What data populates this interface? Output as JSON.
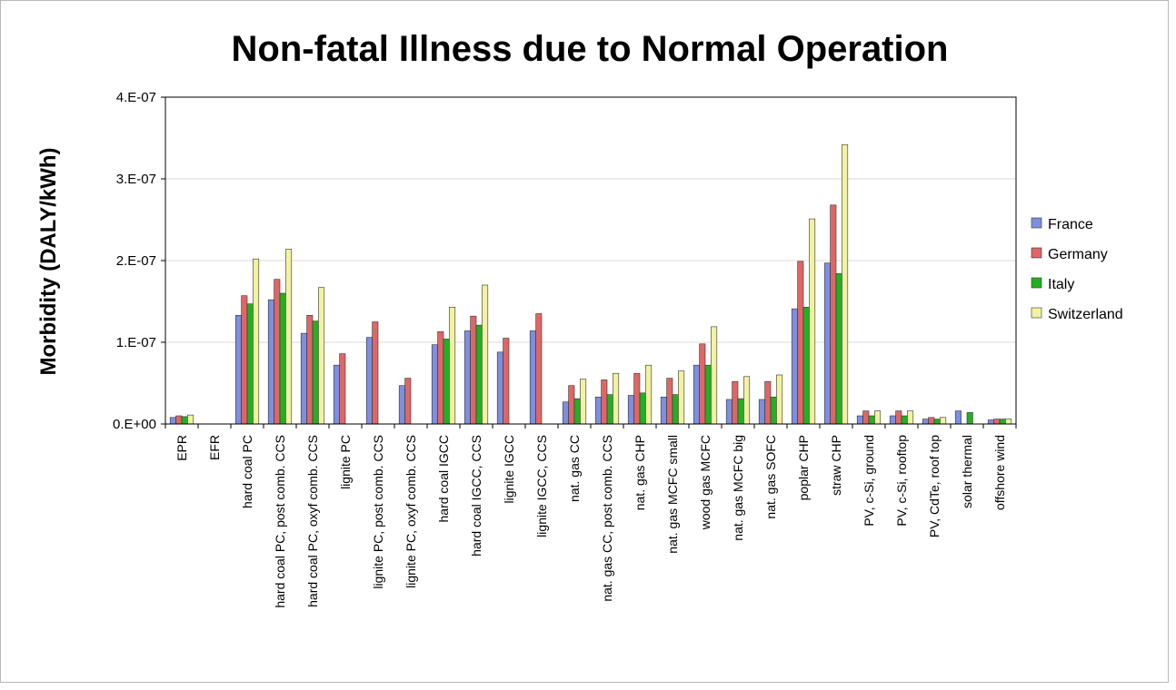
{
  "chart_data": {
    "type": "bar",
    "title": "Non-fatal Illness due to Normal Operation",
    "xlabel": "",
    "ylabel": "Morbidity (DALY/kWh)",
    "ylim": [
      0,
      4e-07
    ],
    "yticks": [
      0,
      1e-07,
      2e-07,
      3e-07,
      4e-07
    ],
    "ytick_labels": [
      "0.E+00",
      "1.E-07",
      "2.E-07",
      "3.E-07",
      "4.E-07"
    ],
    "grid": true,
    "legend_position": "right",
    "categories": [
      "EPR",
      "EFR",
      "hard coal PC",
      "hard coal PC, post comb. CCS",
      "hard coal PC, oxyf comb. CCS",
      "lignite PC",
      "lignite PC, post comb. CCS",
      "lignite PC, oxyf comb. CCS",
      "hard coal IGCC",
      "hard coal IGCC, CCS",
      "lignite IGCC",
      "lignite IGCC, CCS",
      "nat. gas CC",
      "nat. gas CC, post comb. CCS",
      "nat. gas CHP",
      "nat. gas MCFC small",
      "wood gas MCFC",
      "nat. gas MCFC big",
      "nat. gas SOFC",
      "poplar CHP",
      "straw CHP",
      "PV, c-Si, ground",
      "PV, c-Si, rooftop",
      "PV, CdTe, roof top",
      "solar thermal",
      "offshore wind"
    ],
    "series": [
      {
        "name": "France",
        "color": "#7e8fe0",
        "values": [
          8e-09,
          0,
          1.33e-07,
          1.52e-07,
          1.11e-07,
          7.2e-08,
          1.06e-07,
          4.7e-08,
          9.7e-08,
          1.14e-07,
          8.8e-08,
          1.14e-07,
          2.7e-08,
          3.3e-08,
          3.5e-08,
          3.3e-08,
          7.2e-08,
          3e-08,
          3e-08,
          1.41e-07,
          1.97e-07,
          1e-08,
          1e-08,
          6e-09,
          1.6e-08,
          5e-09
        ]
      },
      {
        "name": "Germany",
        "color": "#e06666",
        "values": [
          1e-08,
          0,
          1.57e-07,
          1.77e-07,
          1.33e-07,
          8.6e-08,
          1.25e-07,
          5.6e-08,
          1.13e-07,
          1.32e-07,
          1.05e-07,
          1.35e-07,
          4.7e-08,
          5.4e-08,
          6.2e-08,
          5.6e-08,
          9.8e-08,
          5.2e-08,
          5.2e-08,
          1.99e-07,
          2.68e-07,
          1.6e-08,
          1.6e-08,
          8e-09,
          0,
          6e-09
        ]
      },
      {
        "name": "Italy",
        "color": "#22b022",
        "values": [
          9e-09,
          0,
          1.47e-07,
          1.6e-07,
          1.26e-07,
          0,
          0,
          0,
          1.04e-07,
          1.21e-07,
          0,
          0,
          3.1e-08,
          3.6e-08,
          3.8e-08,
          3.6e-08,
          7.2e-08,
          3.1e-08,
          3.3e-08,
          1.43e-07,
          1.84e-07,
          1e-08,
          1e-08,
          6e-09,
          1.4e-08,
          6e-09
        ]
      },
      {
        "name": "Switzerland",
        "color": "#f2f2a2",
        "values": [
          1.1e-08,
          0,
          2.02e-07,
          2.14e-07,
          1.67e-07,
          0,
          0,
          0,
          1.43e-07,
          1.7e-07,
          0,
          0,
          5.5e-08,
          6.2e-08,
          7.2e-08,
          6.5e-08,
          1.19e-07,
          5.8e-08,
          6e-08,
          2.51e-07,
          3.42e-07,
          1.6e-08,
          1.6e-08,
          8e-09,
          0,
          6e-09
        ]
      }
    ]
  }
}
